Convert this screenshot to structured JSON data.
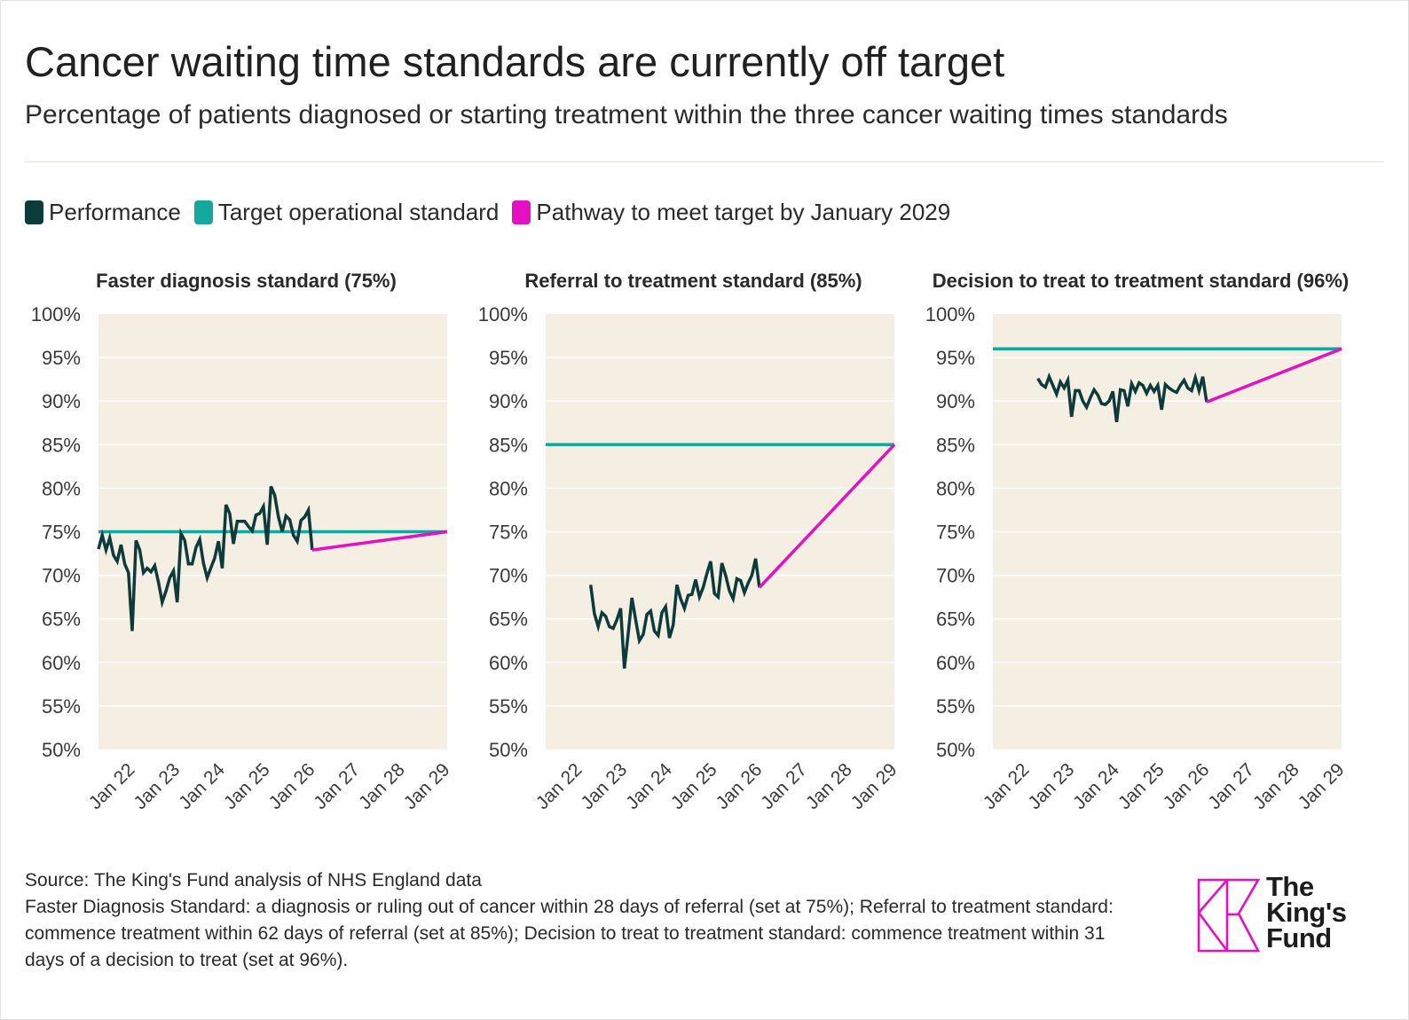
{
  "title": "Cancer waiting time standards are currently off target",
  "subtitle": "Percentage of patients diagnosed or starting treatment within the three cancer waiting times standards",
  "legend": [
    {
      "label": "Performance",
      "color": "#0d3b3b"
    },
    {
      "label": "Target operational standard",
      "color": "#13a89e"
    },
    {
      "label": "Pathway to meet target by January 2029",
      "color": "#e510c4"
    }
  ],
  "colors": {
    "performance": "#0d3b3b",
    "target": "#13a89e",
    "pathway": "#e510c4",
    "plot_bg": "#f5efe3",
    "grid": "#ffffff"
  },
  "footer": {
    "source": "Source: The King's Fund analysis of NHS England data",
    "note": "Faster Diagnosis Standard: a diagnosis or ruling out of cancer within 28 days of referral (set at 75%); Referral to treatment standard: commence treatment within 62 days of referral (set at 85%); Decision to treat to treatment standard: commence treatment within 31 days of a decision to treat (set at 96%)."
  },
  "logo": {
    "line1": "The",
    "line2": "King's",
    "line3": "Fund"
  },
  "chart_data": [
    {
      "type": "line",
      "title": "Faster diagnosis standard (75%)",
      "xlabel": "",
      "ylabel": "",
      "ylim": [
        50,
        100
      ],
      "xlim": [
        "2021-04",
        "2029-01"
      ],
      "yticks": [
        "50%",
        "55%",
        "60%",
        "65%",
        "70%",
        "75%",
        "80%",
        "85%",
        "90%",
        "95%",
        "100%"
      ],
      "xticks": [
        "Jan 22",
        "Jan 23",
        "Jan 24",
        "Jan 25",
        "Jan 26",
        "Jan 27",
        "Jan 28",
        "Jan 29"
      ],
      "target": 75,
      "series": [
        {
          "name": "Performance",
          "points": [
            [
              "2021-04",
              73.0
            ],
            [
              "2021-05",
              74.6
            ],
            [
              "2021-06",
              72.9
            ],
            [
              "2021-07",
              74.3
            ],
            [
              "2021-08",
              72.3
            ],
            [
              "2021-09",
              71.6
            ],
            [
              "2021-10",
              73.5
            ],
            [
              "2021-11",
              71.3
            ],
            [
              "2021-12",
              70.3
            ],
            [
              "2022-01",
              63.6
            ],
            [
              "2022-02",
              74.0
            ],
            [
              "2022-03",
              72.9
            ],
            [
              "2022-04",
              70.3
            ],
            [
              "2022-05",
              70.8
            ],
            [
              "2022-06",
              70.4
            ],
            [
              "2022-07",
              71.1
            ],
            [
              "2022-08",
              69.2
            ],
            [
              "2022-09",
              66.9
            ],
            [
              "2022-10",
              68.2
            ],
            [
              "2022-11",
              69.7
            ],
            [
              "2022-12",
              70.5
            ],
            [
              "2023-01",
              66.9
            ],
            [
              "2023-02",
              74.8
            ],
            [
              "2023-03",
              74.0
            ],
            [
              "2023-04",
              71.3
            ],
            [
              "2023-05",
              71.3
            ],
            [
              "2023-06",
              73.2
            ],
            [
              "2023-07",
              74.1
            ],
            [
              "2023-08",
              71.4
            ],
            [
              "2023-09",
              69.7
            ],
            [
              "2023-10",
              70.9
            ],
            [
              "2023-11",
              72.0
            ],
            [
              "2023-12",
              73.9
            ],
            [
              "2024-01",
              70.8
            ],
            [
              "2024-02",
              78.1
            ],
            [
              "2024-03",
              77.1
            ],
            [
              "2024-04",
              73.6
            ],
            [
              "2024-05",
              76.2
            ],
            [
              "2024-06",
              76.2
            ],
            [
              "2024-07",
              76.2
            ],
            [
              "2024-08",
              75.6
            ],
            [
              "2024-09",
              75.1
            ],
            [
              "2024-10",
              76.9
            ],
            [
              "2024-11",
              77.1
            ],
            [
              "2024-12",
              77.9
            ],
            [
              "2025-01",
              73.5
            ],
            [
              "2025-02",
              80.2
            ],
            [
              "2025-03",
              79.2
            ],
            [
              "2025-04",
              76.7
            ],
            [
              "2025-05",
              75.0
            ],
            [
              "2025-06",
              76.8
            ],
            [
              "2025-07",
              76.4
            ],
            [
              "2025-08",
              74.6
            ],
            [
              "2025-09",
              73.9
            ],
            [
              "2025-10",
              76.3
            ],
            [
              "2025-11",
              76.7
            ],
            [
              "2025-12",
              77.5
            ],
            [
              "2026-01",
              72.9
            ]
          ]
        },
        {
          "name": "Target operational standard",
          "points": [
            [
              "2021-04",
              75
            ],
            [
              "2029-01",
              75
            ]
          ]
        },
        {
          "name": "Pathway to meet target by January 2029",
          "points": [
            [
              "2026-01",
              72.9
            ],
            [
              "2029-01",
              75
            ]
          ]
        }
      ]
    },
    {
      "type": "line",
      "title": "Referral to treatment standard (85%)",
      "xlabel": "",
      "ylabel": "",
      "ylim": [
        50,
        100
      ],
      "xlim": [
        "2021-04",
        "2029-01"
      ],
      "yticks": [
        "50%",
        "55%",
        "60%",
        "65%",
        "70%",
        "75%",
        "80%",
        "85%",
        "90%",
        "95%",
        "100%"
      ],
      "xticks": [
        "Jan 22",
        "Jan 23",
        "Jan 24",
        "Jan 25",
        "Jan 26",
        "Jan 27",
        "Jan 28",
        "Jan 29"
      ],
      "target": 85,
      "series": [
        {
          "name": "Performance",
          "points": [
            [
              "2022-04",
              68.9
            ],
            [
              "2022-05",
              65.6
            ],
            [
              "2022-06",
              64.1
            ],
            [
              "2022-07",
              65.7
            ],
            [
              "2022-08",
              65.3
            ],
            [
              "2022-09",
              64.1
            ],
            [
              "2022-10",
              63.9
            ],
            [
              "2022-11",
              64.9
            ],
            [
              "2022-12",
              66.2
            ],
            [
              "2023-01",
              59.3
            ],
            [
              "2023-02",
              63.3
            ],
            [
              "2023-03",
              67.4
            ],
            [
              "2023-04",
              64.9
            ],
            [
              "2023-05",
              62.5
            ],
            [
              "2023-06",
              63.2
            ],
            [
              "2023-07",
              65.5
            ],
            [
              "2023-08",
              65.9
            ],
            [
              "2023-09",
              63.6
            ],
            [
              "2023-10",
              63.1
            ],
            [
              "2023-11",
              65.7
            ],
            [
              "2023-12",
              66.4
            ],
            [
              "2024-01",
              62.8
            ],
            [
              "2024-02",
              64.3
            ],
            [
              "2024-03",
              68.9
            ],
            [
              "2024-04",
              67.3
            ],
            [
              "2024-05",
              66.2
            ],
            [
              "2024-06",
              67.7
            ],
            [
              "2024-07",
              67.8
            ],
            [
              "2024-08",
              69.5
            ],
            [
              "2024-09",
              67.5
            ],
            [
              "2024-10",
              68.6
            ],
            [
              "2024-11",
              70.2
            ],
            [
              "2024-12",
              71.6
            ],
            [
              "2025-01",
              67.9
            ],
            [
              "2025-02",
              67.5
            ],
            [
              "2025-03",
              71.4
            ],
            [
              "2025-04",
              70.0
            ],
            [
              "2025-05",
              68.2
            ],
            [
              "2025-06",
              67.3
            ],
            [
              "2025-07",
              69.6
            ],
            [
              "2025-08",
              69.4
            ],
            [
              "2025-09",
              68.0
            ],
            [
              "2025-10",
              69.1
            ],
            [
              "2025-11",
              70.0
            ],
            [
              "2025-12",
              71.9
            ],
            [
              "2026-01",
              68.6
            ]
          ]
        },
        {
          "name": "Target operational standard",
          "points": [
            [
              "2021-04",
              85
            ],
            [
              "2029-01",
              85
            ]
          ]
        },
        {
          "name": "Pathway to meet target by January 2029",
          "points": [
            [
              "2026-01",
              68.6
            ],
            [
              "2029-01",
              85
            ]
          ]
        }
      ]
    },
    {
      "type": "line",
      "title": "Decision to treat to treatment standard (96%)",
      "xlabel": "",
      "ylabel": "",
      "ylim": [
        50,
        100
      ],
      "xlim": [
        "2021-04",
        "2029-01"
      ],
      "yticks": [
        "50%",
        "55%",
        "60%",
        "65%",
        "70%",
        "75%",
        "80%",
        "85%",
        "90%",
        "95%",
        "100%"
      ],
      "xticks": [
        "Jan 22",
        "Jan 23",
        "Jan 24",
        "Jan 25",
        "Jan 26",
        "Jan 27",
        "Jan 28",
        "Jan 29"
      ],
      "target": 96,
      "series": [
        {
          "name": "Performance",
          "points": [
            [
              "2022-04",
              92.6
            ],
            [
              "2022-05",
              91.9
            ],
            [
              "2022-06",
              91.6
            ],
            [
              "2022-07",
              92.8
            ],
            [
              "2022-08",
              91.8
            ],
            [
              "2022-09",
              90.8
            ],
            [
              "2022-10",
              92.2
            ],
            [
              "2022-11",
              91.5
            ],
            [
              "2022-12",
              92.4
            ],
            [
              "2023-01",
              88.2
            ],
            [
              "2023-02",
              91.2
            ],
            [
              "2023-03",
              91.2
            ],
            [
              "2023-04",
              90.0
            ],
            [
              "2023-05",
              89.3
            ],
            [
              "2023-06",
              90.4
            ],
            [
              "2023-07",
              91.3
            ],
            [
              "2023-08",
              90.7
            ],
            [
              "2023-09",
              89.7
            ],
            [
              "2023-10",
              89.6
            ],
            [
              "2023-11",
              90.0
            ],
            [
              "2023-12",
              91.1
            ],
            [
              "2024-01",
              87.6
            ],
            [
              "2024-02",
              91.3
            ],
            [
              "2024-03",
              91.2
            ],
            [
              "2024-04",
              89.4
            ],
            [
              "2024-05",
              92.0
            ],
            [
              "2024-06",
              91.1
            ],
            [
              "2024-07",
              92.1
            ],
            [
              "2024-08",
              91.8
            ],
            [
              "2024-09",
              90.9
            ],
            [
              "2024-10",
              91.8
            ],
            [
              "2024-11",
              91.1
            ],
            [
              "2024-12",
              91.8
            ],
            [
              "2025-01",
              89.0
            ],
            [
              "2025-02",
              91.9
            ],
            [
              "2025-03",
              91.5
            ],
            [
              "2025-04",
              91.2
            ],
            [
              "2025-05",
              91.0
            ],
            [
              "2025-06",
              91.8
            ],
            [
              "2025-07",
              92.4
            ],
            [
              "2025-08",
              91.5
            ],
            [
              "2025-09",
              91.2
            ],
            [
              "2025-10",
              92.7
            ],
            [
              "2025-11",
              91.2
            ],
            [
              "2025-12",
              92.8
            ],
            [
              "2026-01",
              89.9
            ]
          ]
        },
        {
          "name": "Target operational standard",
          "points": [
            [
              "2021-04",
              96
            ],
            [
              "2029-01",
              96
            ]
          ]
        },
        {
          "name": "Pathway to meet target by January 2029",
          "points": [
            [
              "2026-01",
              89.9
            ],
            [
              "2029-01",
              96
            ]
          ]
        }
      ]
    }
  ]
}
